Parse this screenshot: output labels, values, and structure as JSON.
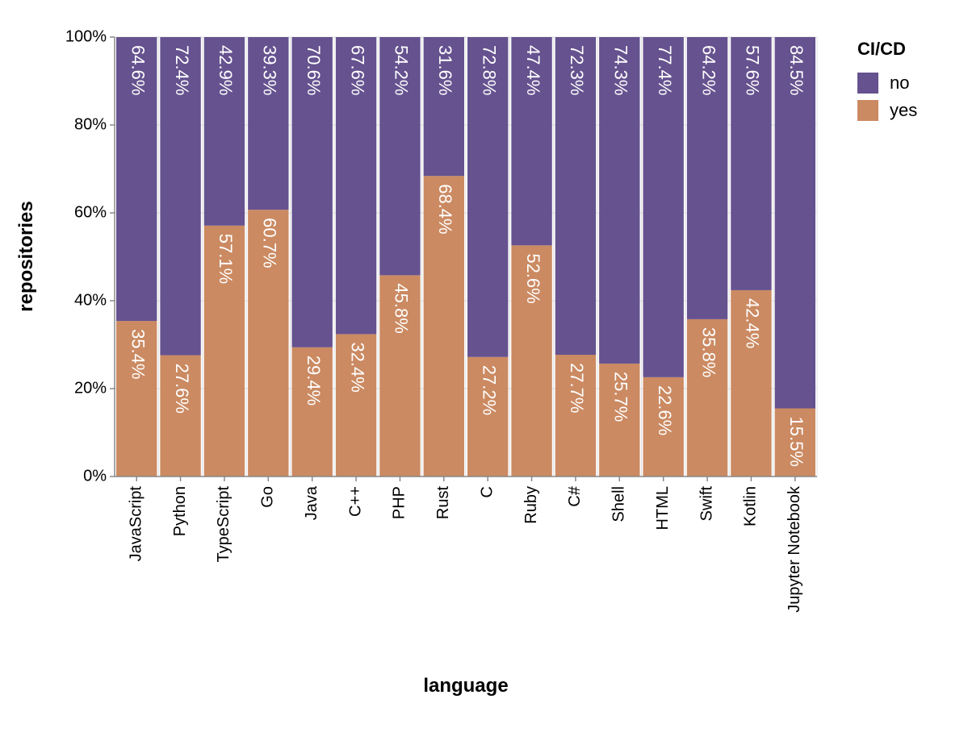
{
  "chart_data": {
    "type": "bar",
    "stacked": true,
    "normalized": true,
    "categories": [
      "JavaScript",
      "Python",
      "TypeScript",
      "Go",
      "Java",
      "C++",
      "PHP",
      "Rust",
      "C",
      "Ruby",
      "C#",
      "Shell",
      "HTML",
      "Swift",
      "Kotlin",
      "Jupyter Notebook"
    ],
    "series": [
      {
        "name": "no",
        "color": "#65528f",
        "values": [
          64.6,
          72.4,
          42.9,
          39.3,
          70.6,
          67.6,
          54.2,
          31.6,
          72.8,
          47.4,
          72.3,
          74.3,
          77.4,
          64.2,
          57.6,
          84.5
        ],
        "labels": [
          "64.6%",
          "72.4%",
          "42.9%",
          "39.3%",
          "70.6%",
          "67.6%",
          "54.2%",
          "31.6%",
          "72.8%",
          "47.4%",
          "72.3%",
          "74.3%",
          "77.4%",
          "64.2%",
          "57.6%",
          "84.5%"
        ]
      },
      {
        "name": "yes",
        "color": "#cb8a62",
        "values": [
          35.4,
          27.6,
          57.1,
          60.7,
          29.4,
          32.4,
          45.8,
          68.4,
          27.2,
          52.6,
          27.7,
          25.7,
          22.6,
          35.8,
          42.4,
          15.5
        ],
        "labels": [
          "35.4%",
          "27.6%",
          "57.1%",
          "60.7%",
          "29.4%",
          "32.4%",
          "45.8%",
          "68.4%",
          "27.2%",
          "52.6%",
          "27.7%",
          "25.7%",
          "22.6%",
          "35.8%",
          "42.4%",
          "15.5%"
        ]
      }
    ],
    "xlabel": "language",
    "ylabel": "repositories",
    "ylim": [
      0,
      100
    ],
    "yticks": [
      0,
      20,
      40,
      60,
      80,
      100
    ],
    "ytick_labels": [
      "0%",
      "20%",
      "40%",
      "60%",
      "80%",
      "100%"
    ],
    "grid": true,
    "legend": {
      "title": "CI/CD",
      "position": "top-right",
      "entries": [
        "no",
        "yes"
      ]
    }
  }
}
